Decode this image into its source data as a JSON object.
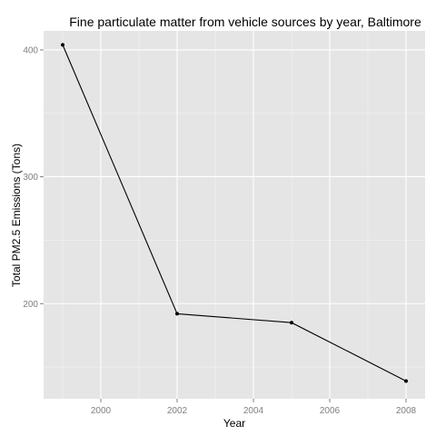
{
  "colors": {
    "panel_background": "#e5e5e5",
    "grid_major": "#ffffff",
    "grid_minor": "#f2f2f2",
    "series": "#000000",
    "tick_label": "#7f7f7f",
    "text": "#000000"
  },
  "chart_data": {
    "type": "line",
    "title": "Fine particulate matter from vehicle sources by year, Baltimore",
    "xlabel": "Year",
    "ylabel": "Total PM2.5 Emissions (Tons)",
    "x": [
      1999,
      2002,
      2005,
      2008
    ],
    "series": [
      {
        "values": [
          404,
          192,
          185,
          139
        ],
        "markers": true
      }
    ],
    "xlim": [
      1998.5,
      2008.5
    ],
    "ylim": [
      125,
      415
    ],
    "x_ticks": [
      2000,
      2002,
      2004,
      2006,
      2008
    ],
    "x_tick_labels": [
      "2000",
      "2002",
      "2004",
      "2006",
      "2008"
    ],
    "y_ticks": [
      200,
      300,
      400
    ],
    "y_tick_labels": [
      "200",
      "300",
      "400"
    ],
    "grid": true,
    "legend": "none"
  }
}
